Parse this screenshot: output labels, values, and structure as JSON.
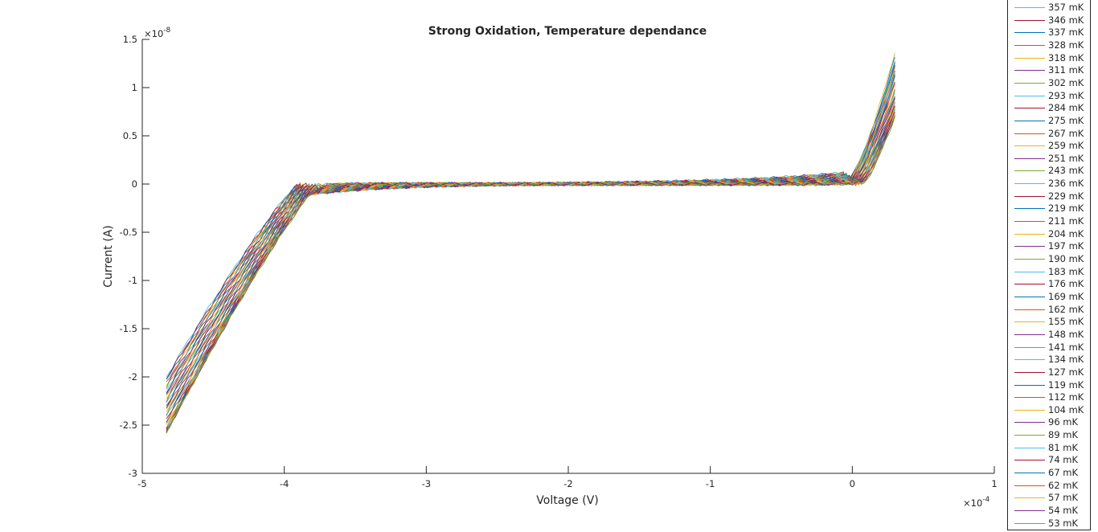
{
  "chart_data": {
    "type": "line",
    "title": "Strong Oxidation, Temperature dependance",
    "xlabel": "Voltage (V)",
    "ylabel": "Current (A)",
    "x_exponent_label": "×10",
    "x_exponent": "-4",
    "y_exponent_label": "×10",
    "y_exponent": "-8",
    "x_scale_factor": 0.0001,
    "y_scale_factor": 1e-08,
    "xlim": [
      -5,
      1
    ],
    "ylim": [
      -3,
      1.5
    ],
    "xticks": [
      -5,
      -4,
      -3,
      -2,
      -1,
      0,
      1
    ],
    "xtick_labels": [
      "-5",
      "-4",
      "-3",
      "-2",
      "-1",
      "0",
      "1"
    ],
    "yticks": [
      -3,
      -2.5,
      -2,
      -1.5,
      -1,
      -0.5,
      0,
      0.5,
      1,
      1.5
    ],
    "ytick_labels": [
      "-3",
      "-2.5",
      "-2",
      "-1.5",
      "-1",
      "-0.5",
      "0",
      "0.5",
      "1",
      "1.5"
    ],
    "grid": false,
    "legend_position": "outside-right",
    "x_range": [
      -4.83,
      0.3
    ],
    "colors": [
      "#4DBEEE",
      "#A2142F",
      "#0072BD",
      "#D95319",
      "#EDB120",
      "#7E2F8E",
      "#77AC30"
    ],
    "series": [
      {
        "name": "357 mK",
        "i_min": -2.0,
        "i_max": 1.28
      },
      {
        "name": "346 mK",
        "i_min": -2.02,
        "i_max": 1.26
      },
      {
        "name": "337 mK",
        "i_min": -2.04,
        "i_max": 1.31
      },
      {
        "name": "328 mK",
        "i_min": -2.06,
        "i_max": 1.24
      },
      {
        "name": "318 mK",
        "i_min": -2.08,
        "i_max": 1.37
      },
      {
        "name": "311 mK",
        "i_min": -2.1,
        "i_max": 1.22
      },
      {
        "name": "302 mK",
        "i_min": -2.12,
        "i_max": 1.2
      },
      {
        "name": "293 mK",
        "i_min": -2.14,
        "i_max": 1.27
      },
      {
        "name": "284 mK",
        "i_min": -2.16,
        "i_max": 1.18
      },
      {
        "name": "275 mK",
        "i_min": -2.18,
        "i_max": 1.25
      },
      {
        "name": "267 mK",
        "i_min": -2.2,
        "i_max": 1.15
      },
      {
        "name": "259 mK",
        "i_min": -2.22,
        "i_max": 1.22
      },
      {
        "name": "251 mK",
        "i_min": -2.24,
        "i_max": 1.12
      },
      {
        "name": "243 mK",
        "i_min": -2.26,
        "i_max": 1.1
      },
      {
        "name": "236 mK",
        "i_min": -2.28,
        "i_max": 1.16
      },
      {
        "name": "229 mK",
        "i_min": -2.3,
        "i_max": 1.07
      },
      {
        "name": "219 mK",
        "i_min": -2.32,
        "i_max": 1.13
      },
      {
        "name": "211 mK",
        "i_min": -2.34,
        "i_max": 1.04
      },
      {
        "name": "204 mK",
        "i_min": -2.36,
        "i_max": 1.0
      },
      {
        "name": "197 mK",
        "i_min": -2.38,
        "i_max": 0.98
      },
      {
        "name": "190 mK",
        "i_min": -2.4,
        "i_max": 0.96
      },
      {
        "name": "183 mK",
        "i_min": -2.42,
        "i_max": 0.94
      },
      {
        "name": "176 mK",
        "i_min": -2.44,
        "i_max": 0.92
      },
      {
        "name": "169 mK",
        "i_min": -2.46,
        "i_max": 0.9
      },
      {
        "name": "162 mK",
        "i_min": -2.48,
        "i_max": 0.88
      },
      {
        "name": "155 mK",
        "i_min": -2.5,
        "i_max": 0.86
      },
      {
        "name": "148 mK",
        "i_min": -2.52,
        "i_max": 0.85
      },
      {
        "name": "141 mK",
        "i_min": -2.53,
        "i_max": 0.84
      },
      {
        "name": "134 mK",
        "i_min": -2.54,
        "i_max": 0.83
      },
      {
        "name": "127 mK",
        "i_min": -2.55,
        "i_max": 0.82
      },
      {
        "name": "119 mK",
        "i_min": -2.56,
        "i_max": 0.81
      },
      {
        "name": "112 mK",
        "i_min": -2.56,
        "i_max": 0.8
      },
      {
        "name": "104 mK",
        "i_min": -2.56,
        "i_max": 0.79
      },
      {
        "name": "96 mK",
        "i_min": -2.57,
        "i_max": 0.78
      },
      {
        "name": "89 mK",
        "i_min": -2.57,
        "i_max": 0.77
      },
      {
        "name": "81 mK",
        "i_min": -2.57,
        "i_max": 0.76
      },
      {
        "name": "74 mK",
        "i_min": -2.57,
        "i_max": 0.75
      },
      {
        "name": "67 mK",
        "i_min": -2.57,
        "i_max": 0.74
      },
      {
        "name": "62 mK",
        "i_min": -2.57,
        "i_max": 0.73
      },
      {
        "name": "57 mK",
        "i_min": -2.57,
        "i_max": 0.72
      },
      {
        "name": "54 mK",
        "i_min": -2.57,
        "i_max": 0.71
      },
      {
        "name": "53 mK",
        "i_min": -2.57,
        "i_max": 0.7
      }
    ]
  }
}
